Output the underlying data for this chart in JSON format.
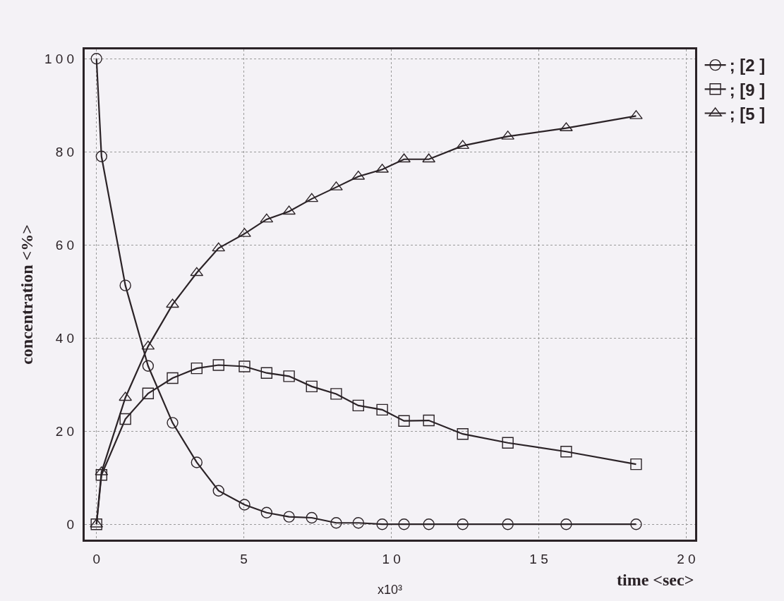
{
  "chart_data": {
    "type": "line",
    "xlabel": "time <sec>",
    "ylabel": "concentration <%>",
    "annotations": [
      "x10³"
    ],
    "x": [
      0,
      0.17,
      0.98,
      1.75,
      2.58,
      3.4,
      4.14,
      5.02,
      5.77,
      6.53,
      7.3,
      8.13,
      8.88,
      9.69,
      10.43,
      11.27,
      12.42,
      13.95,
      15.93,
      18.3
    ],
    "series": [
      {
        "name": "; [2 ]",
        "color": "#2b2327",
        "marker": "circle",
        "values": [
          100,
          79,
          51.3,
          34,
          21.8,
          13.3,
          7.2,
          4.2,
          2.5,
          1.6,
          1.4,
          0.3,
          0.3,
          0,
          0,
          0,
          0,
          0,
          0,
          0
        ]
      },
      {
        "name": "; [9 ]",
        "color": "#2b2327",
        "marker": "square",
        "values": [
          0,
          10.6,
          22.6,
          28.1,
          31.4,
          33.5,
          34.2,
          33.9,
          32.5,
          31.8,
          29.6,
          28,
          25.5,
          24.6,
          22.2,
          22.3,
          19.4,
          17.5,
          15.6,
          12.9
        ]
      },
      {
        "name": "; [5 ]",
        "color": "#2b2327",
        "marker": "triangle",
        "values": [
          0,
          11.2,
          27.2,
          38.2,
          47.2,
          54,
          59.3,
          62.4,
          65.5,
          67.2,
          69.9,
          72.4,
          74.7,
          76.2,
          78.4,
          78.4,
          81.3,
          83.3,
          85.1,
          87.7
        ]
      }
    ],
    "xlim": [
      -0.4,
      20.3
    ],
    "ylim": [
      -3.3,
      102
    ],
    "xticks": [
      0,
      5,
      10,
      15,
      20
    ],
    "yticks": [
      0,
      20,
      40,
      60,
      80,
      100
    ],
    "grid": true,
    "legend": "top right",
    "line_style": "solid"
  }
}
